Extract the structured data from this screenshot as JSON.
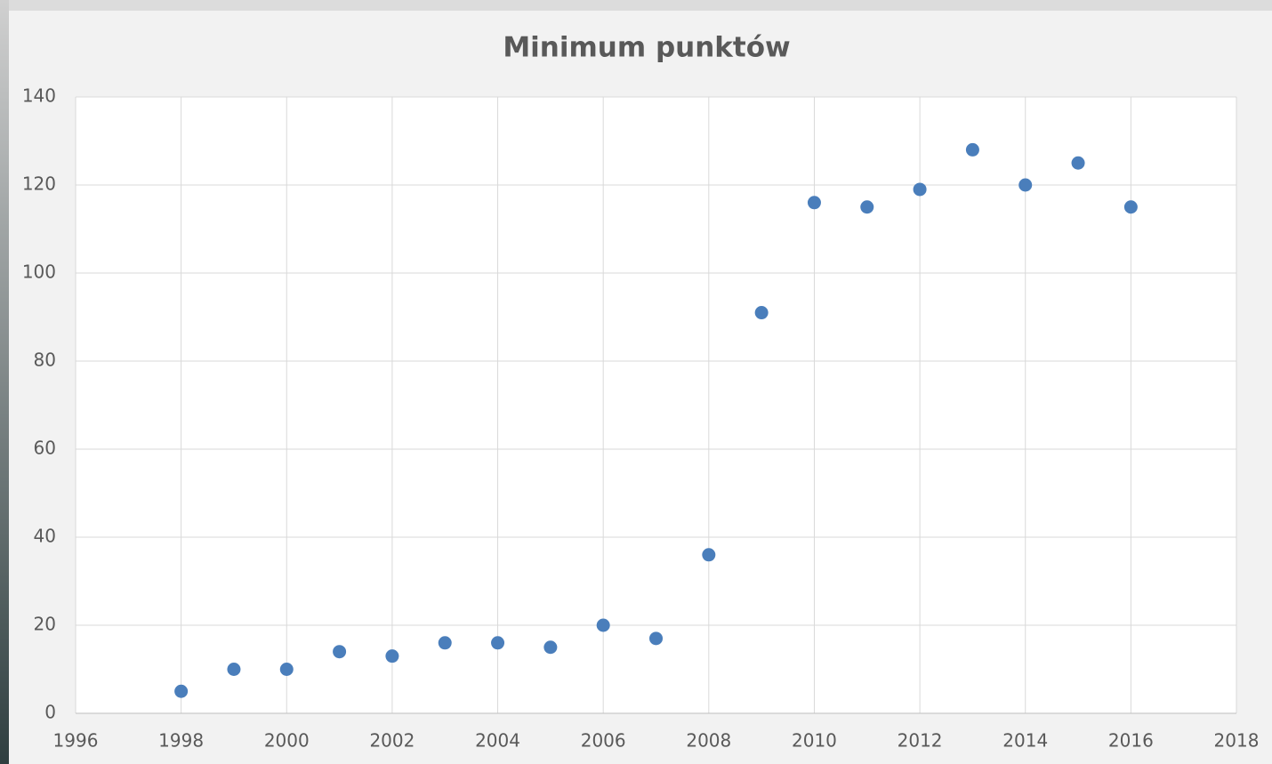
{
  "chart_data": {
    "type": "scatter",
    "title": "Minimum punktów",
    "x": [
      1998,
      1999,
      2000,
      2001,
      2002,
      2003,
      2004,
      2005,
      2006,
      2007,
      2008,
      2009,
      2010,
      2011,
      2012,
      2013,
      2014,
      2015,
      2016
    ],
    "series": [
      {
        "color": "#4a7ebb",
        "values": [
          5,
          10,
          10,
          14,
          13,
          16,
          16,
          15,
          20,
          17,
          36,
          91,
          116,
          115,
          119,
          128,
          120,
          125,
          115
        ]
      }
    ],
    "xlim": [
      1996,
      2018
    ],
    "xticks": [
      1996,
      1998,
      2000,
      2002,
      2004,
      2006,
      2008,
      2010,
      2012,
      2014,
      2016,
      2018
    ],
    "ylim": [
      0,
      140
    ],
    "yticks": [
      0,
      20,
      40,
      60,
      80,
      100,
      120,
      140
    ],
    "grid": true
  }
}
